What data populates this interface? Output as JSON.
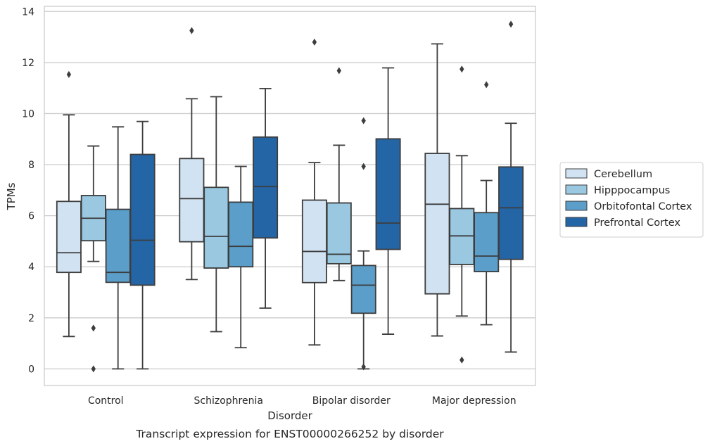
{
  "caption": "Transcript expression for ENST00000266252 by disorder",
  "chart_data": {
    "type": "boxplot",
    "title": "",
    "xlabel": "Disorder",
    "ylabel": "TPMs",
    "ylim": [
      -0.65,
      14.2
    ],
    "yticks": [
      0,
      2,
      4,
      6,
      8,
      10,
      12,
      14
    ],
    "grid": true,
    "legend_position": "right",
    "categories": [
      "Control",
      "Schizophrenia",
      "Bipolar disorder",
      "Major depression"
    ],
    "series": [
      {
        "name": "Cerebellum",
        "color": "#d1e2f2",
        "boxes": [
          {
            "whislo": 1.27,
            "q1": 3.78,
            "med": 4.55,
            "q3": 6.56,
            "whishi": 9.95,
            "fliers": [
              11.53
            ]
          },
          {
            "whislo": 3.5,
            "q1": 4.98,
            "med": 6.67,
            "q3": 8.24,
            "whishi": 10.58,
            "fliers": [
              13.25
            ]
          },
          {
            "whislo": 0.94,
            "q1": 3.38,
            "med": 4.6,
            "q3": 6.61,
            "whishi": 8.08,
            "fliers": [
              12.8
            ]
          },
          {
            "whislo": 1.29,
            "q1": 2.94,
            "med": 6.45,
            "q3": 8.44,
            "whishi": 12.73,
            "fliers": []
          }
        ]
      },
      {
        "name": "Hipppocampus",
        "color": "#9ac8e0",
        "boxes": [
          {
            "whislo": 4.21,
            "q1": 5.02,
            "med": 5.9,
            "q3": 6.79,
            "whishi": 8.73,
            "fliers": [
              1.6,
              0.0
            ]
          },
          {
            "whislo": 1.46,
            "q1": 3.95,
            "med": 5.19,
            "q3": 7.11,
            "whishi": 10.66,
            "fliers": []
          },
          {
            "whislo": 3.46,
            "q1": 4.12,
            "med": 4.49,
            "q3": 6.5,
            "whishi": 8.76,
            "fliers": [
              11.68
            ]
          },
          {
            "whislo": 2.07,
            "q1": 4.09,
            "med": 5.21,
            "q3": 6.28,
            "whishi": 8.35,
            "fliers": [
              11.74,
              0.35
            ]
          }
        ]
      },
      {
        "name": "Orbitofontal Cortex",
        "color": "#5a9ec9",
        "boxes": [
          {
            "whislo": 0.0,
            "q1": 3.39,
            "med": 3.78,
            "q3": 6.25,
            "whishi": 9.48,
            "fliers": []
          },
          {
            "whislo": 0.83,
            "q1": 4.0,
            "med": 4.8,
            "q3": 6.53,
            "whishi": 7.93,
            "fliers": []
          },
          {
            "whislo": 0.0,
            "q1": 2.18,
            "med": 3.28,
            "q3": 4.05,
            "whishi": 4.62,
            "fliers": [
              9.72,
              7.93,
              0.08
            ]
          },
          {
            "whislo": 1.73,
            "q1": 3.81,
            "med": 4.42,
            "q3": 6.12,
            "whishi": 7.38,
            "fliers": [
              11.13
            ]
          }
        ]
      },
      {
        "name": "Prefrontal Cortex",
        "color": "#2465a6",
        "boxes": [
          {
            "whislo": 0.0,
            "q1": 3.28,
            "med": 5.04,
            "q3": 8.4,
            "whishi": 9.69,
            "fliers": []
          },
          {
            "whislo": 2.38,
            "q1": 5.13,
            "med": 7.14,
            "q3": 9.08,
            "whishi": 10.98,
            "fliers": []
          },
          {
            "whislo": 1.36,
            "q1": 4.68,
            "med": 5.71,
            "q3": 9.01,
            "whishi": 11.79,
            "fliers": []
          },
          {
            "whislo": 0.66,
            "q1": 4.29,
            "med": 6.31,
            "q3": 7.91,
            "whishi": 9.62,
            "fliers": [
              13.5
            ]
          }
        ]
      }
    ]
  }
}
